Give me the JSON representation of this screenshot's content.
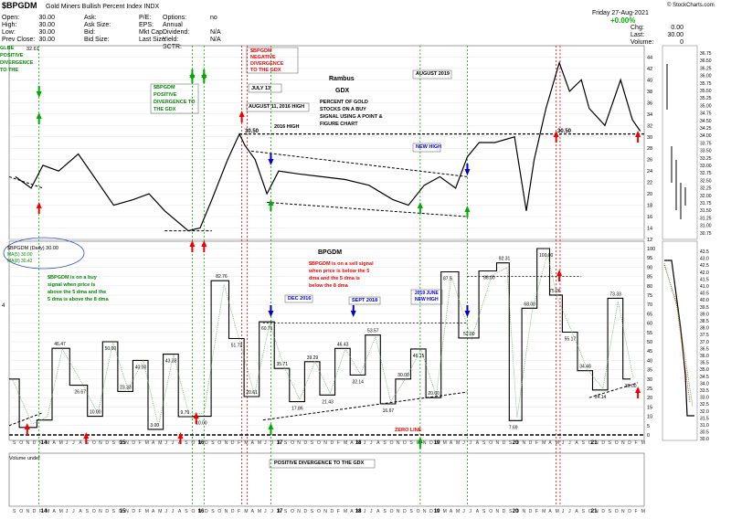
{
  "header": {
    "symbol": "$BPGDM",
    "name": "Gold Miners Bullish Percent Index",
    "exchange": "INDX",
    "brand": "© StockCharts.com",
    "date": "Friday 27-Aug-2021",
    "change_pct": "+0.00%",
    "quote_cols": [
      [
        [
          "Open:",
          "30.00"
        ],
        [
          "High:",
          "30.00"
        ],
        [
          "Low:",
          "30.00"
        ],
        [
          "Prev Close:",
          "30.00"
        ]
      ],
      [
        [
          "Ask:",
          ""
        ],
        [
          "Ask Size:",
          ""
        ],
        [
          "Bid:",
          ""
        ],
        [
          "Bid Size:",
          ""
        ]
      ],
      [
        [
          "P/E:",
          ""
        ],
        [
          "EPS:",
          ""
        ],
        [
          "Mkt Cap:",
          ""
        ],
        [
          "Last Size:",
          ""
        ]
      ],
      [
        [
          "Options:",
          "no"
        ],
        [
          "Annual Dividend:",
          "N/A"
        ],
        [
          "Yield:",
          "N/A"
        ],
        [
          "SCTR:",
          ""
        ]
      ],
      [
        [
          "Chg:",
          "0.00"
        ],
        [
          "Last:",
          "30.00"
        ],
        [
          "Volume:",
          "0"
        ]
      ]
    ]
  },
  "annotations": {
    "rambus": "Rambus",
    "gdx": "GDX",
    "desc": [
      "PERCENT OF GOLD",
      "STOCKS ON A BUY",
      "SIGNAL USING A POINT &",
      "FIGURE CHART"
    ],
    "neg_div": [
      "$BPGDM",
      "NEGATIVE",
      "DIVERGENCE",
      "TO THE GDX"
    ],
    "pos_div": [
      "$BPGDM",
      "POSITIVE",
      "DIVERGENCE TO",
      "THE GDX"
    ],
    "pos_div_left": [
      "GLBE",
      "POSITIVE",
      "DIVERGENCE",
      "TO THE"
    ],
    "july13": "JULY 13",
    "aug11": "AUGUST 11, 2016 HIGH",
    "aug2019": "AUGUST 2019",
    "new_high": "NEW HIGH",
    "high_2016": "2016 HIGH",
    "lvl_3050_a": "30.50",
    "lvl_3050_b": "30.50",
    "bp_title": "BPGDM",
    "sell_signal": [
      "$BPGDM is on a sell signal",
      "when price is below the 5",
      "dma and the 5 dma is",
      "below the 8 dma"
    ],
    "buy_signal": [
      "$BPGDM is on a buy",
      "signal when price is",
      "above the 5 dma and the",
      "5 dma is above the 8 dma"
    ],
    "dec2016": "DEC 2016",
    "sept2018": "SEPT 2018",
    "june2019": [
      "2019 JUNE",
      "NEW HIGH"
    ],
    "zero_line": "ZERO LINE",
    "pos_div_bottom": "POSITIVE DIVERGENCE TO THE GDX",
    "legend1": "$BPGDM (Daily) 30.00",
    "legend2": "MA(5) 30.00",
    "legend3": "MA(8) 30.42",
    "volume": "Volume undef",
    "gdx_last": "32.61",
    "left_label": "4"
  },
  "chart_data": [
    {
      "type": "line",
      "title": "GDX",
      "ylim": [
        12,
        46
      ],
      "yticks": [
        12,
        14,
        16,
        18,
        20,
        22,
        24,
        26,
        28,
        30,
        32,
        34,
        36,
        38,
        40,
        42,
        44
      ],
      "x_years": [
        "14",
        "15",
        "16",
        "17",
        "18",
        "19",
        "20",
        "21"
      ],
      "month_labels": [
        "S",
        "O",
        "N",
        "D",
        "F",
        "M",
        "A",
        "M",
        "J",
        "J",
        "A",
        "S",
        "O",
        "N",
        "D"
      ],
      "series": [
        {
          "x": [
            2013.7,
            2013.9,
            2014.05,
            2014.25,
            2014.5,
            2014.75,
            2014.95,
            2015.2,
            2015.4,
            2015.6,
            2015.9,
            2016.05,
            2016.2,
            2016.4,
            2016.55,
            2016.62,
            2016.75,
            2016.9,
            2017.05,
            2017.3,
            2017.6,
            2017.9,
            2018.2,
            2018.5,
            2018.7,
            2018.9,
            2019.1,
            2019.3,
            2019.45,
            2019.6,
            2019.8,
            2020.05,
            2020.2,
            2020.3,
            2020.45,
            2020.62,
            2020.75,
            2020.9,
            2021.0,
            2021.2,
            2021.4,
            2021.55,
            2021.65
          ],
          "y": [
            23,
            21,
            25,
            24,
            27,
            22,
            18,
            19,
            20,
            17,
            13.5,
            14,
            19,
            26,
            30.5,
            28.5,
            26,
            20,
            24,
            23.5,
            23,
            22.5,
            21.5,
            19,
            18,
            21.5,
            23,
            21,
            26.5,
            29,
            29,
            30,
            17,
            26,
            35,
            43,
            38,
            40,
            35,
            32,
            40,
            33,
            31
          ]
        }
      ]
    },
    {
      "type": "line",
      "title": "BPGDM",
      "ylim": [
        0,
        100
      ],
      "yticks": [
        0,
        5,
        10,
        15,
        20,
        25,
        30,
        35,
        40,
        45,
        50,
        55,
        60,
        65,
        70,
        75,
        80,
        85,
        90,
        95,
        100
      ],
      "data_labels": [
        "46.47",
        "26.67",
        "50.00",
        "23.33",
        "40.00",
        "0.00",
        "43.33",
        "9.79",
        "82.76",
        "51.72",
        "20.61",
        "60.71",
        "35.71",
        "17.86",
        "39.29",
        "21.43",
        "46.43",
        "32.14",
        "53.57",
        "30.00",
        "46.15",
        "20.00",
        "87.50",
        "52.00",
        "88.00",
        "92.31",
        "68.00",
        "100.00",
        "7.69",
        "75.06",
        "55.17",
        "34.48",
        "24.14",
        "73.33",
        "20.00",
        "16.67"
      ],
      "series": [
        {
          "name": "$BPGDM (Daily)",
          "x": [
            2013.7,
            2013.9,
            2014.05,
            2014.2,
            2014.4,
            2014.55,
            2014.7,
            2014.85,
            2015.0,
            2015.15,
            2015.3,
            2015.45,
            2015.6,
            2015.75,
            2015.9,
            2016.05,
            2016.2,
            2016.35,
            2016.5,
            2016.6,
            2016.75,
            2016.9,
            2017.0,
            2017.1,
            2017.25,
            2017.4,
            2017.55,
            2017.7,
            2017.85,
            2018.0,
            2018.15,
            2018.3,
            2018.45,
            2018.6,
            2018.75,
            2018.9,
            2019.05,
            2019.2,
            2019.35,
            2019.45,
            2019.6,
            2019.75,
            2019.9,
            2020.05,
            2020.2,
            2020.3,
            2020.4,
            2020.55,
            2020.65,
            2020.8,
            2020.95,
            2021.05,
            2021.2,
            2021.35,
            2021.5,
            2021.65
          ],
          "y": [
            30,
            4,
            8,
            46.47,
            26.67,
            10,
            50,
            23.33,
            40,
            3,
            43.33,
            9.79,
            82.76,
            51.72,
            20.61,
            60.71,
            35.71,
            17.86,
            39.29,
            21.43,
            46.43,
            32.14,
            53.57,
            16.67,
            30,
            46.15,
            20,
            87.5,
            52,
            88,
            92.31,
            7.69,
            68,
            100,
            75.06,
            55.17,
            34.48,
            24.14,
            73.33,
            30,
            30,
            30,
            30,
            30,
            30,
            30,
            30,
            30,
            30,
            30,
            30,
            30,
            30,
            30,
            30,
            30
          ]
        },
        {
          "name": "MA(5)",
          "value": 30.0
        },
        {
          "name": "MA(8)",
          "value": 30.42
        }
      ]
    }
  ]
}
